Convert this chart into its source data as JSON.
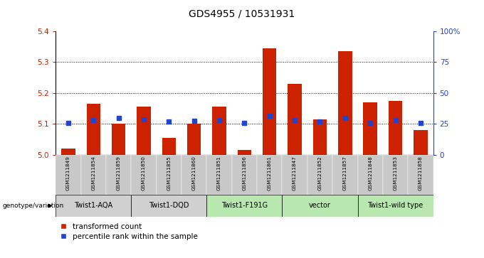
{
  "title": "GDS4955 / 10531931",
  "samples": [
    "GSM1211849",
    "GSM1211854",
    "GSM1211859",
    "GSM1211850",
    "GSM1211855",
    "GSM1211860",
    "GSM1211851",
    "GSM1211856",
    "GSM1211861",
    "GSM1211847",
    "GSM1211852",
    "GSM1211857",
    "GSM1211848",
    "GSM1211853",
    "GSM1211858"
  ],
  "bar_values": [
    5.02,
    5.165,
    5.1,
    5.155,
    5.055,
    5.1,
    5.155,
    5.015,
    5.345,
    5.23,
    5.115,
    5.335,
    5.17,
    5.175,
    5.08
  ],
  "dot_values": [
    5.102,
    5.112,
    5.118,
    5.115,
    5.108,
    5.11,
    5.112,
    5.102,
    5.125,
    5.112,
    5.108,
    5.118,
    5.103,
    5.112,
    5.103
  ],
  "groups": [
    {
      "label": "Twist1-AQA",
      "start": 0,
      "end": 3,
      "color": "#d0d0d0"
    },
    {
      "label": "Twist1-DQD",
      "start": 3,
      "end": 6,
      "color": "#d0d0d0"
    },
    {
      "label": "Twist1-F191G",
      "start": 6,
      "end": 9,
      "color": "#b8e8b0"
    },
    {
      "label": "vector",
      "start": 9,
      "end": 12,
      "color": "#b8e8b0"
    },
    {
      "label": "Twist1-wild type",
      "start": 12,
      "end": 15,
      "color": "#b8e8b0"
    }
  ],
  "ylim_left": [
    5.0,
    5.4
  ],
  "ylim_right": [
    0,
    100
  ],
  "yticks_left": [
    5.0,
    5.1,
    5.2,
    5.3,
    5.4
  ],
  "yticks_right": [
    0,
    25,
    50,
    75,
    100
  ],
  "ytick_labels_right": [
    "0",
    "25",
    "50",
    "75",
    "100%"
  ],
  "hlines": [
    5.1,
    5.2,
    5.3
  ],
  "bar_color": "#cc2200",
  "dot_color": "#2244cc",
  "bar_width": 0.55,
  "sample_bg_color": "#c8c8c8",
  "title_fontsize": 10,
  "legend_label_red": "transformed count",
  "legend_label_blue": "percentile rank within the sample",
  "genotype_label": "genotype/variation"
}
